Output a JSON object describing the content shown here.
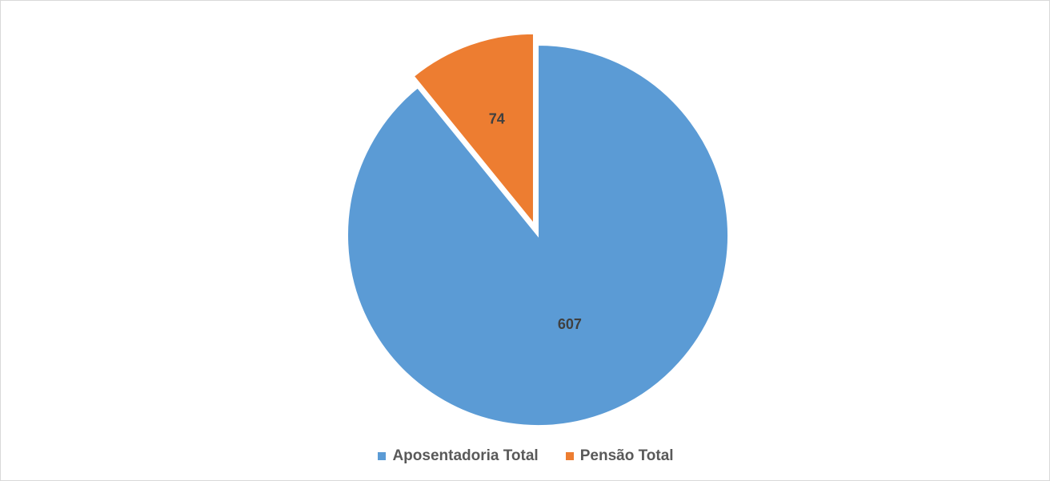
{
  "chart_data": {
    "type": "pie",
    "title": "",
    "categories": [
      "Aposentadoria Total",
      "Pensão Total"
    ],
    "values": [
      607,
      74
    ],
    "colors": [
      "#5b9bd5",
      "#ed7d31"
    ],
    "exploded": [
      false,
      true
    ],
    "data_labels": [
      "607",
      "74"
    ],
    "legend": {
      "position": "bottom",
      "entries": [
        "Aposentadoria Total",
        "Pensão Total"
      ]
    }
  }
}
